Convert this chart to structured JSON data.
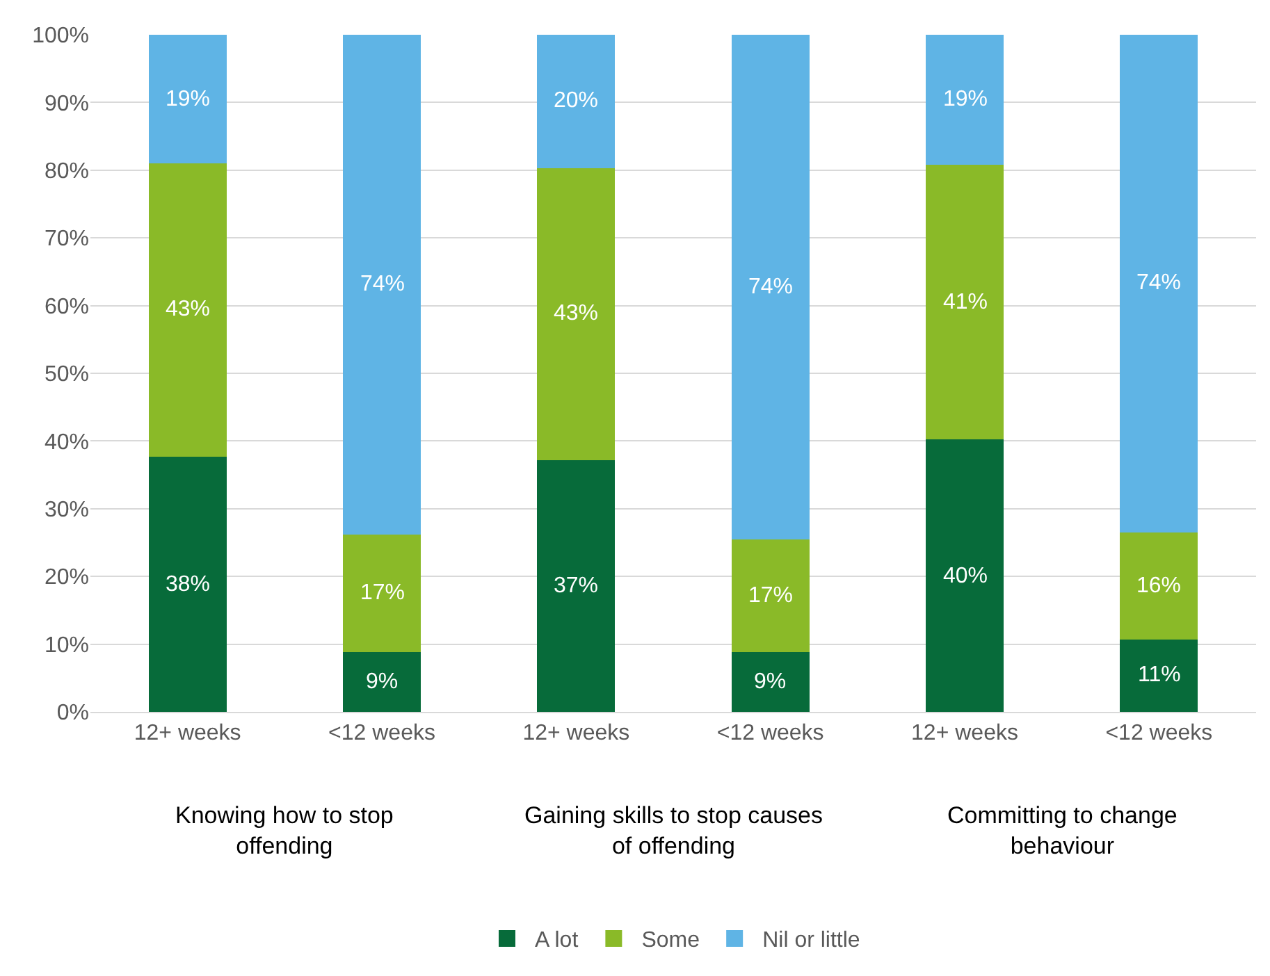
{
  "chart_data": {
    "type": "bar",
    "stacked": true,
    "categories": [
      "12+ weeks",
      "<12 weeks",
      "12+ weeks",
      "<12 weeks",
      "12+ weeks",
      "<12 weeks"
    ],
    "series": [
      {
        "name": "A lot",
        "color": "#076b3a",
        "values": [
          37.7,
          8.8,
          37.2,
          8.8,
          40.2,
          10.7
        ],
        "value_labels": [
          "38%",
          "9%",
          "37%",
          "9%",
          "40%",
          "11%"
        ]
      },
      {
        "name": "Some",
        "color": "#8aba28",
        "values": [
          43.3,
          17.4,
          43.1,
          16.7,
          40.6,
          15.8
        ],
        "value_labels": [
          "43%",
          "17%",
          "43%",
          "17%",
          "41%",
          "16%"
        ]
      },
      {
        "name": "Nil or little",
        "color": "#5fb4e5",
        "values": [
          19.0,
          73.8,
          19.7,
          74.5,
          19.2,
          73.5
        ],
        "value_labels": [
          "19%",
          "74%",
          "20%",
          "74%",
          "19%",
          "74%"
        ]
      }
    ],
    "annotations": [
      "Knowing how to stop\noffending",
      "Gaining skills to stop causes\nof offending",
      "Committing to change\nbehaviour"
    ],
    "ylim": [
      0,
      100
    ],
    "yticks": [
      {
        "value": 0,
        "label": "0%"
      },
      {
        "value": 10,
        "label": "10%"
      },
      {
        "value": 20,
        "label": "20%"
      },
      {
        "value": 30,
        "label": "30%"
      },
      {
        "value": 40,
        "label": "40%"
      },
      {
        "value": 50,
        "label": "50%"
      },
      {
        "value": 60,
        "label": "60%"
      },
      {
        "value": 70,
        "label": "70%"
      },
      {
        "value": 80,
        "label": "80%"
      },
      {
        "value": 90,
        "label": "90%"
      },
      {
        "value": 100,
        "label": "100%"
      }
    ],
    "grid": "y",
    "legend": "bottom"
  }
}
